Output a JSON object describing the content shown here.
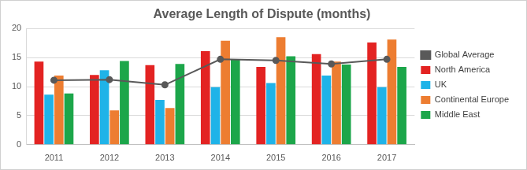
{
  "chart_data": {
    "type": "bar",
    "title": "Average Length of Dispute (months)",
    "categories": [
      "2011",
      "2012",
      "2013",
      "2014",
      "2015",
      "2016",
      "2017"
    ],
    "series": [
      {
        "name": "North America",
        "color": "#e32322",
        "values": [
          14.3,
          12.0,
          13.7,
          16.1,
          13.4,
          15.6,
          17.6
        ]
      },
      {
        "name": "UK",
        "color": "#1fb3e8",
        "values": [
          8.6,
          12.8,
          7.7,
          9.9,
          10.6,
          11.9,
          9.9
        ]
      },
      {
        "name": "Continental Europe",
        "color": "#ed7d31",
        "values": [
          11.9,
          5.9,
          6.3,
          17.9,
          18.5,
          14.3,
          18.1
        ]
      },
      {
        "name": "Middle East",
        "color": "#1ca64a",
        "values": [
          8.8,
          14.4,
          13.9,
          14.7,
          15.2,
          13.8,
          13.4
        ]
      },
      {
        "name": "Global Average",
        "color": "#595959",
        "type": "line",
        "marker": "circle",
        "line_style": "solid",
        "values": [
          11.1,
          11.2,
          10.3,
          14.7,
          14.5,
          13.9,
          14.7
        ]
      }
    ],
    "ylim": [
      0,
      20
    ],
    "yticks": [
      0,
      5,
      10,
      15,
      20
    ],
    "grid": true,
    "legend": "right"
  }
}
